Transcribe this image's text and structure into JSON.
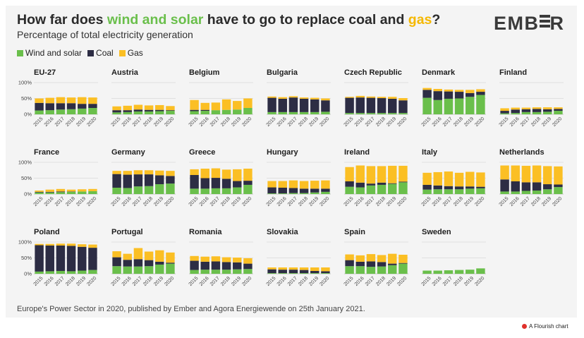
{
  "header": {
    "title_part1": "How far does ",
    "title_wind": "wind and solar",
    "title_part2": " have to go to replace coal and ",
    "title_gas": "gas",
    "title_part3": "?",
    "subtitle": "Percentage of total electricity generation",
    "logo": "EMBER"
  },
  "legend": [
    {
      "label": "Wind and solar",
      "color": "#6abf4b"
    },
    {
      "label": "Coal",
      "color": "#2d2d44"
    },
    {
      "label": "Gas",
      "color": "#fbbf24"
    }
  ],
  "footer": "Europe's Power Sector in 2020, published by Ember and Agora Energiewende on 25th January 2021.",
  "flourish": "A Flourish chart",
  "colors": {
    "wind_solar": "#6abf4b",
    "coal": "#2d2d44",
    "gas": "#fbbf24",
    "grid": "#cccccc"
  },
  "chart_data": {
    "type": "bar",
    "stacked": true,
    "x": [
      "2015",
      "2016",
      "2017",
      "2018",
      "2019",
      "2020"
    ],
    "y_ticks": [
      "0%",
      "50%",
      "100%"
    ],
    "ylim": [
      0,
      100
    ],
    "series_names": [
      "Wind and solar",
      "Coal",
      "Gas"
    ],
    "panels": [
      {
        "name": "EU-27",
        "wind_solar": [
          12,
          13,
          15,
          16,
          18,
          20
        ],
        "coal": [
          24,
          22,
          20,
          19,
          15,
          13
        ],
        "gas": [
          14,
          17,
          19,
          18,
          21,
          20
        ]
      },
      {
        "name": "Austria",
        "wind_solar": [
          6,
          7,
          9,
          9,
          10,
          11
        ],
        "coal": [
          7,
          6,
          6,
          5,
          4,
          2
        ],
        "gas": [
          12,
          14,
          15,
          14,
          15,
          13
        ]
      },
      {
        "name": "Belgium",
        "wind_solar": [
          10,
          11,
          13,
          14,
          15,
          20
        ],
        "coal": [
          4,
          3,
          0,
          0,
          0,
          0
        ],
        "gas": [
          31,
          22,
          24,
          33,
          27,
          30
        ]
      },
      {
        "name": "Bulgaria",
        "wind_solar": [
          7,
          7,
          7,
          7,
          7,
          8
        ],
        "coal": [
          45,
          42,
          46,
          42,
          40,
          36
        ],
        "gas": [
          4,
          5,
          4,
          4,
          5,
          6
        ]
      },
      {
        "name": "Czech Republic",
        "wind_solar": [
          4,
          4,
          4,
          4,
          4,
          4
        ],
        "coal": [
          48,
          49,
          48,
          47,
          45,
          40
        ],
        "gas": [
          3,
          5,
          4,
          4,
          6,
          7
        ]
      },
      {
        "name": "Denmark",
        "wind_solar": [
          52,
          45,
          49,
          50,
          55,
          61
        ],
        "coal": [
          25,
          28,
          23,
          21,
          12,
          10
        ],
        "gas": [
          6,
          7,
          6,
          6,
          10,
          8
        ]
      },
      {
        "name": "Finland",
        "wind_solar": [
          3,
          4,
          7,
          7,
          8,
          11
        ],
        "coal": [
          8,
          11,
          9,
          10,
          8,
          6
        ],
        "gas": [
          8,
          6,
          5,
          5,
          6,
          5
        ]
      },
      {
        "name": "France",
        "wind_solar": [
          5,
          5,
          6,
          7,
          8,
          9
        ],
        "coal": [
          2,
          2,
          2,
          1,
          0,
          0
        ],
        "gas": [
          4,
          7,
          8,
          6,
          7,
          7
        ]
      },
      {
        "name": "Germany",
        "wind_solar": [
          20,
          19,
          24,
          25,
          31,
          33
        ],
        "coal": [
          43,
          42,
          38,
          37,
          28,
          24
        ],
        "gas": [
          10,
          12,
          13,
          13,
          15,
          16
        ]
      },
      {
        "name": "Greece",
        "wind_solar": [
          17,
          17,
          18,
          18,
          21,
          29
        ],
        "coal": [
          43,
          33,
          33,
          30,
          20,
          13
        ],
        "gas": [
          18,
          30,
          30,
          29,
          37,
          38
        ]
      },
      {
        "name": "Hungary",
        "wind_solar": [
          2,
          2,
          3,
          3,
          5,
          7
        ],
        "coal": [
          19,
          18,
          16,
          14,
          12,
          10
        ],
        "gas": [
          20,
          21,
          24,
          24,
          25,
          26
        ]
      },
      {
        "name": "Ireland",
        "wind_solar": [
          23,
          21,
          27,
          29,
          32,
          37
        ],
        "coal": [
          17,
          15,
          6,
          7,
          2,
          2
        ],
        "gas": [
          45,
          54,
          55,
          52,
          55,
          50
        ]
      },
      {
        "name": "Italy",
        "wind_solar": [
          14,
          15,
          15,
          15,
          17,
          18
        ],
        "coal": [
          15,
          12,
          10,
          9,
          7,
          5
        ],
        "gas": [
          38,
          42,
          46,
          43,
          46,
          45
        ]
      },
      {
        "name": "Netherlands",
        "wind_solar": [
          8,
          8,
          10,
          11,
          15,
          22
        ],
        "coal": [
          38,
          32,
          27,
          26,
          16,
          8
        ],
        "gas": [
          44,
          50,
          52,
          53,
          57,
          57
        ]
      },
      {
        "name": "Poland",
        "wind_solar": [
          7,
          8,
          9,
          8,
          10,
          12
        ],
        "coal": [
          83,
          81,
          80,
          80,
          75,
          70
        ],
        "gas": [
          4,
          5,
          6,
          7,
          8,
          10
        ]
      },
      {
        "name": "Portugal",
        "wind_solar": [
          24,
          23,
          23,
          24,
          29,
          32
        ],
        "coal": [
          28,
          21,
          23,
          19,
          9,
          3
        ],
        "gas": [
          19,
          19,
          35,
          27,
          36,
          32
        ]
      },
      {
        "name": "Romania",
        "wind_solar": [
          12,
          13,
          13,
          13,
          14,
          15
        ],
        "coal": [
          29,
          25,
          26,
          24,
          22,
          17
        ],
        "gas": [
          15,
          16,
          16,
          15,
          15,
          17
        ]
      },
      {
        "name": "Slovakia",
        "wind_solar": [
          2,
          2,
          2,
          2,
          2,
          2
        ],
        "coal": [
          12,
          11,
          11,
          10,
          7,
          6
        ],
        "gas": [
          6,
          7,
          7,
          8,
          11,
          12
        ]
      },
      {
        "name": "Spain",
        "wind_solar": [
          24,
          24,
          22,
          23,
          27,
          32
        ],
        "coal": [
          19,
          14,
          17,
          14,
          5,
          2
        ],
        "gas": [
          18,
          20,
          23,
          22,
          31,
          26
        ]
      },
      {
        "name": "Sweden",
        "wind_solar": [
          10,
          10,
          11,
          12,
          13,
          17
        ],
        "coal": [
          0,
          0,
          0,
          0,
          0,
          0
        ],
        "gas": [
          0,
          0,
          0,
          0,
          0,
          0
        ]
      }
    ]
  }
}
